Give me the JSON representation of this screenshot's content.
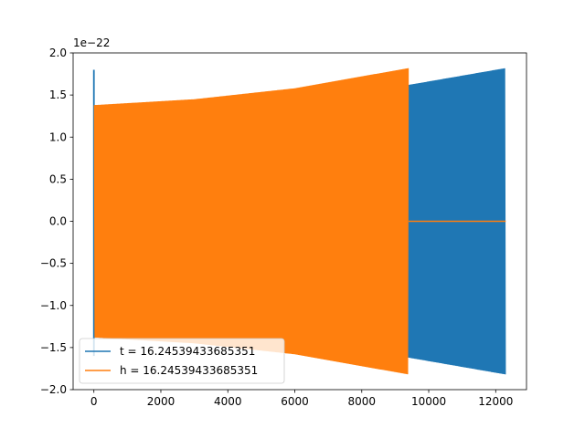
{
  "chart_data": {
    "type": "line",
    "title": "",
    "xlabel": "",
    "ylabel": "",
    "offset_text": "1e−22",
    "xlim": [
      -620,
      12920
    ],
    "ylim": [
      -2.0,
      2.0
    ],
    "x_ticks": [
      0,
      2000,
      4000,
      6000,
      8000,
      10000,
      12000
    ],
    "x_tick_labels": [
      "0",
      "2000",
      "4000",
      "6000",
      "8000",
      "10000",
      "12000"
    ],
    "y_ticks": [
      -2.0,
      -1.5,
      -1.0,
      -0.5,
      0.0,
      0.5,
      1.0,
      1.5,
      2.0
    ],
    "y_tick_labels": [
      "−2.0",
      "−1.5",
      "−1.0",
      "−0.5",
      "0.0",
      "0.5",
      "1.0",
      "1.5",
      "2.0"
    ],
    "grid": false,
    "legend_position": "lower-left",
    "series": [
      {
        "name": "t = 16.24539433685351",
        "color": "#1f77b4",
        "x_range": [
          0,
          12300
        ],
        "spike_x": 0,
        "spike_max": 1.8,
        "envelope": [
          [
            20,
            1.38
          ],
          [
            3000,
            1.41
          ],
          [
            6000,
            1.51
          ],
          [
            9400,
            1.62
          ],
          [
            12300,
            1.82
          ]
        ],
        "oscillating": true
      },
      {
        "name": "h = 16.24539433685351",
        "color": "#ff7f0e",
        "x_range": [
          0,
          12300
        ],
        "active_end": 9400,
        "envelope": [
          [
            0,
            1.38
          ],
          [
            3000,
            1.45
          ],
          [
            6000,
            1.58
          ],
          [
            9400,
            1.82
          ]
        ],
        "tail_value": 0.0,
        "oscillating": true
      }
    ]
  }
}
